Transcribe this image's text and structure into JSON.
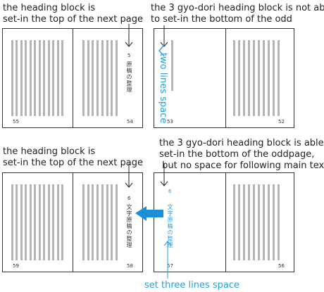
{
  "captions": {
    "top_left": "the heading block is\nset-in the top of the next page",
    "top_right": "the 3 gyo-dori heading block is not able\nto set-in the bottom of the odd",
    "bottom_left": "the heading block is\nset-in the top of the next page",
    "bottom_right": "the 3 gyo-dori heading block is able to\nset-in the bottom of the oddpage,\n but no space for following main text"
  },
  "labels": {
    "two_lines_space": "two lines space",
    "set_three_lines_space": "set three lines space"
  },
  "spreads": {
    "top_left": {
      "left_page": "55",
      "right_page": "54",
      "heading_number": "5",
      "heading_text": "原稿の整理"
    },
    "top_right": {
      "left_page": "53",
      "right_page": "52"
    },
    "bottom_left": {
      "left_page": "59",
      "right_page": "58",
      "heading_number": "6",
      "heading_text": "文字原稿の整理"
    },
    "bottom_right": {
      "left_page": "57",
      "right_page": "56",
      "heading_number": "6",
      "heading_text": "文字原稿の整理"
    }
  },
  "colors": {
    "accent": "#2a9fd6",
    "bars": "#b4b4b4",
    "frame": "#333333"
  },
  "icons": [
    "down-arrow-icon",
    "left-arrow-icon",
    "up-arrow-icon",
    "block-arrow-left-icon"
  ]
}
